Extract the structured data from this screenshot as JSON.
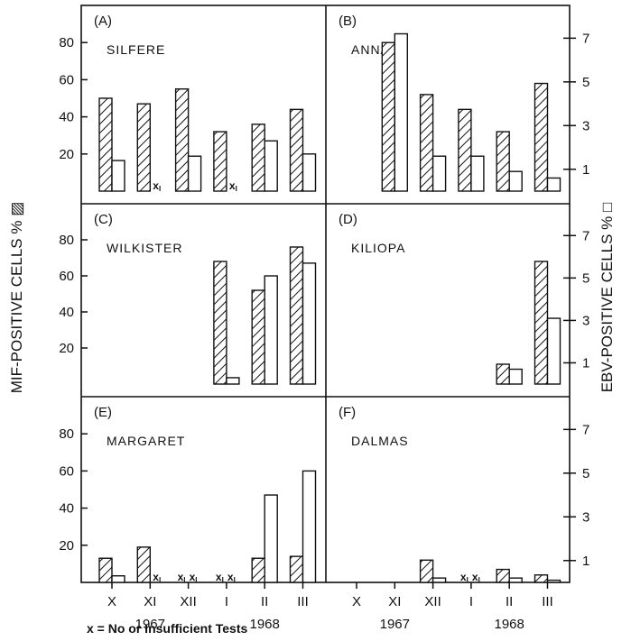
{
  "figure": {
    "left_axis_label": "MIF-POSITIVE CELLS % ▨",
    "right_axis_label": "EBV-POSITIVE CELLS % □",
    "footnote": "x = No or Insufficient Tests",
    "missing_marker": "x",
    "missing_subscript": "I"
  },
  "chart_data": {
    "type": "bar",
    "categories": [
      "X",
      "XI",
      "XII",
      "I",
      "II",
      "III"
    ],
    "year_labels": [
      {
        "text": "1967",
        "category": "XI"
      },
      {
        "text": "1968",
        "category": "II"
      }
    ],
    "left_axis": {
      "label": "MIF-POSITIVE CELLS %",
      "ylim": [
        0,
        100
      ],
      "ticks": [
        20,
        40,
        60,
        80
      ]
    },
    "right_axis": {
      "label": "EBV-POSITIVE CELLS %",
      "ylim": [
        0,
        8.5
      ],
      "ticks": [
        1,
        3,
        5,
        7
      ]
    },
    "legend": [
      "MIF-positive cells (hatched bars)",
      "EBV-positive cells (open bars)"
    ],
    "panels": [
      {
        "letter": "(A)",
        "name": "SILFERE",
        "mif": [
          50,
          47,
          55,
          32,
          36,
          44
        ],
        "ebv": [
          1.4,
          null,
          1.6,
          null,
          2.3,
          1.7
        ],
        "missing": [
          "XI",
          "I"
        ]
      },
      {
        "letter": "(B)",
        "name": "ANNAH",
        "mif": [
          null,
          80,
          52,
          44,
          32,
          58
        ],
        "ebv": [
          null,
          7.2,
          1.6,
          1.6,
          0.9,
          0.6
        ],
        "missing": []
      },
      {
        "letter": "(C)",
        "name": "WILKISTER",
        "mif": [
          null,
          null,
          null,
          68,
          52,
          76
        ],
        "ebv": [
          null,
          null,
          null,
          0.3,
          5.1,
          5.7
        ],
        "missing": []
      },
      {
        "letter": "(D)",
        "name": "KILIOPA",
        "mif": [
          null,
          null,
          null,
          null,
          11,
          68
        ],
        "ebv": [
          null,
          null,
          null,
          null,
          0.7,
          3.1
        ],
        "missing": []
      },
      {
        "letter": "(E)",
        "name": "MARGARET",
        "mif": [
          13,
          19,
          null,
          null,
          13,
          14
        ],
        "ebv": [
          0.3,
          null,
          null,
          null,
          4.0,
          5.1
        ],
        "missing": [
          "XI",
          "XII",
          "XII",
          "I",
          "I"
        ]
      },
      {
        "letter": "(F)",
        "name": "DALMAS",
        "mif": [
          null,
          null,
          12,
          null,
          7,
          4
        ],
        "ebv": [
          null,
          null,
          0.2,
          null,
          0.2,
          0.1
        ],
        "missing": [
          "I",
          "I"
        ]
      }
    ]
  }
}
